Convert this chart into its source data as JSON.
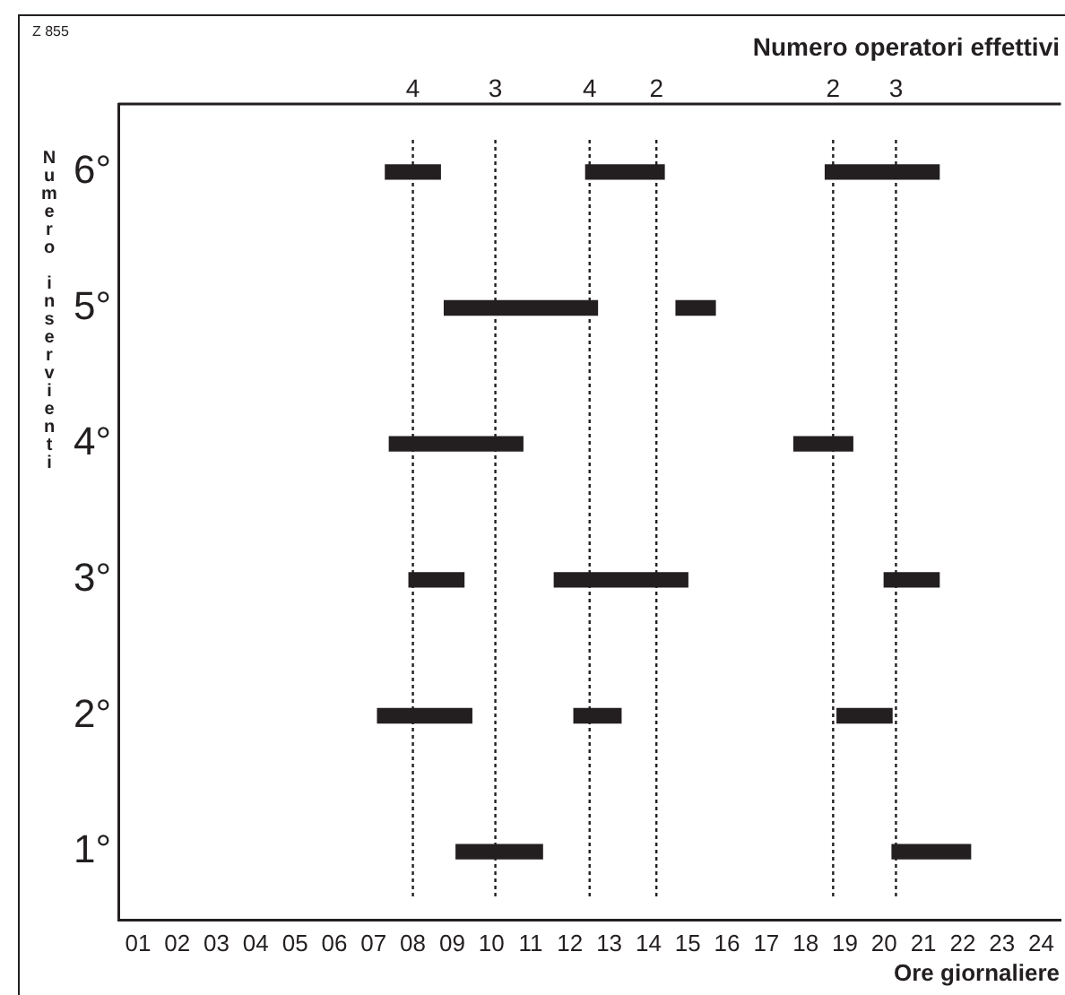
{
  "chart_data": {
    "type": "bar",
    "orientation": "horizontal",
    "title": "Numero operatori effettivi",
    "xlabel": "Ore giornaliere",
    "ylabel": "Numero inservienti",
    "annotations": [
      "Z 855",
      "4",
      "3",
      "4",
      "2",
      "2",
      "3"
    ],
    "categories": [
      "6°",
      "5°",
      "4°",
      "3°",
      "2°",
      "1°"
    ],
    "series": [
      {
        "color": "#231f20",
        "base": [
          7.3,
          8.8,
          7.4,
          7.9,
          7.1,
          9.1
        ],
        "values": [
          1.4,
          3.9,
          3.4,
          1.4,
          2.4,
          2.2
        ]
      },
      {
        "color": "#231f20",
        "base": [
          12.4,
          14.7,
          17.7,
          11.6,
          12.1,
          20.2
        ],
        "values": [
          2.0,
          1.0,
          1.5,
          3.4,
          1.2,
          2.0
        ]
      },
      {
        "color": "#231f20",
        "base": [
          18.5,
          null,
          null,
          20.0,
          18.8,
          null
        ],
        "values": [
          2.9,
          null,
          null,
          1.4,
          1.4,
          null
        ]
      }
    ],
    "xlim": [
      0.5,
      24.5
    ],
    "xticks": [
      {
        "value": 1,
        "label": "01"
      },
      {
        "value": 2,
        "label": "02"
      },
      {
        "value": 3,
        "label": "03"
      },
      {
        "value": 4,
        "label": "04"
      },
      {
        "value": 5,
        "label": "05"
      },
      {
        "value": 6,
        "label": "06"
      },
      {
        "value": 7,
        "label": "07"
      },
      {
        "value": 8,
        "label": "08"
      },
      {
        "value": 9,
        "label": "09"
      },
      10,
      11,
      12,
      13,
      14,
      15,
      16,
      17,
      18,
      19,
      20,
      21,
      22,
      23,
      24
    ],
    "ref_lines": [
      {
        "axis": "x",
        "value": 8.0,
        "line_style": "dotted"
      },
      {
        "axis": "x",
        "value": 10.1,
        "line_style": "dotted"
      },
      {
        "axis": "x",
        "value": 12.5,
        "line_style": "dotted"
      },
      {
        "axis": "x",
        "value": 14.2,
        "line_style": "dotted"
      },
      {
        "axis": "x",
        "value": 18.7,
        "line_style": "dotted"
      },
      {
        "axis": "x",
        "value": 20.3,
        "line_style": "dotted"
      }
    ]
  }
}
